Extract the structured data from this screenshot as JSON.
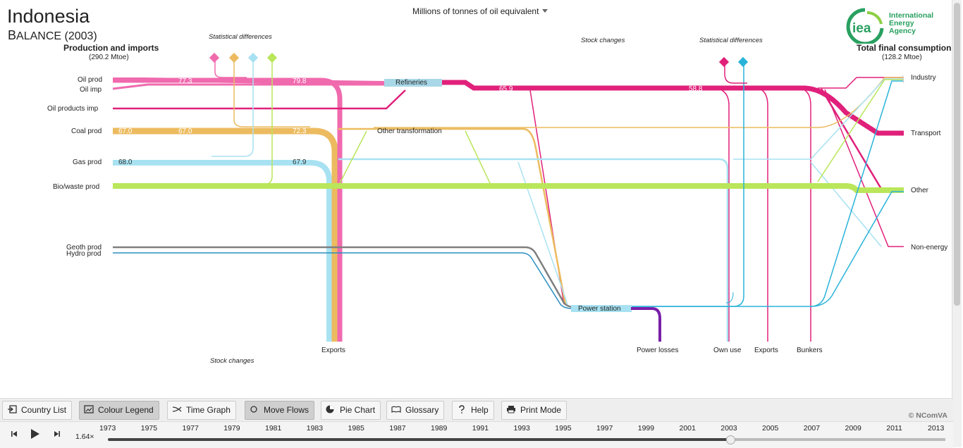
{
  "header": {
    "country": "Indonesia",
    "balance_cap": "B",
    "balance_rest": "ALANCE",
    "year_label": "(2003)",
    "unit_selector": "Millions of tonnes of oil equivalent"
  },
  "logo": {
    "line1": "International",
    "line2": "Energy Agency",
    "mark": "iea"
  },
  "left_header": {
    "title": "Production and imports",
    "total": "(290.2 Mtoe)"
  },
  "right_header": {
    "title": "Total final consumption",
    "total": "(128.2 Mtoe)"
  },
  "sources": {
    "oil_prod": "Oil prod",
    "oil_imp": "Oil imp",
    "oil_products_imp": "Oil products imp",
    "coal_prod": "Coal prod",
    "gas_prod": "Gas prod",
    "biowaste_prod": "Bio/waste prod",
    "geoth_prod": "Geoth prod",
    "hydro_prod": "Hydro prod"
  },
  "nodes": {
    "refineries": "Refineries",
    "other_transformation": "Other transformation",
    "power_station": "Power station",
    "stat_diff_left": "Statistical differences",
    "stat_diff_right": "Statistical differences",
    "stock_changes_top": "Stock  changes",
    "stock_changes_bottom": "Stock changes",
    "exports_left": "Exports",
    "power_losses": "Power losses",
    "own_use": "Own use",
    "exports_right": "Exports",
    "bunkers": "Bunkers"
  },
  "sinks": {
    "industry": "Industry",
    "transport": "Transport",
    "other": "Other",
    "non_energy": "Non-energy"
  },
  "values": {
    "oil_a": "77.3",
    "oil_b": "79.8",
    "coal_a": "67.0",
    "coal_b": "67.0",
    "coal_c": "72.3",
    "gas_a": "68.0",
    "gas_b": "67.9",
    "prod_a": "65.9",
    "prod_b": "58.8"
  },
  "colors": {
    "oil": "#f06aae",
    "oil_products": "#e0207a",
    "coal": "#ecbb5f",
    "gas": "#a8e2f2",
    "biowaste": "#b9e65a",
    "geoth": "#7f7f7f",
    "hydro": "#2a8ec0",
    "electricity": "#2ab3d9",
    "losses": "#7a1fa8"
  },
  "toolbar": {
    "country_list": "Country List",
    "colour_legend": "Colour Legend",
    "time_graph": "Time Graph",
    "move_flows": "Move Flows",
    "pie_chart": "Pie Chart",
    "glossary": "Glossary",
    "help": "Help",
    "print_mode": "Print Mode",
    "copyright": "© NComVA"
  },
  "timeline": {
    "speed": "1.64×",
    "years": [
      "1973",
      "1975",
      "1977",
      "1979",
      "1981",
      "1983",
      "1985",
      "1987",
      "1989",
      "1991",
      "1993",
      "1995",
      "1997",
      "1999",
      "2001",
      "2003",
      "2005",
      "2007",
      "2009",
      "2011",
      "2013"
    ],
    "selected_year": "2003"
  }
}
